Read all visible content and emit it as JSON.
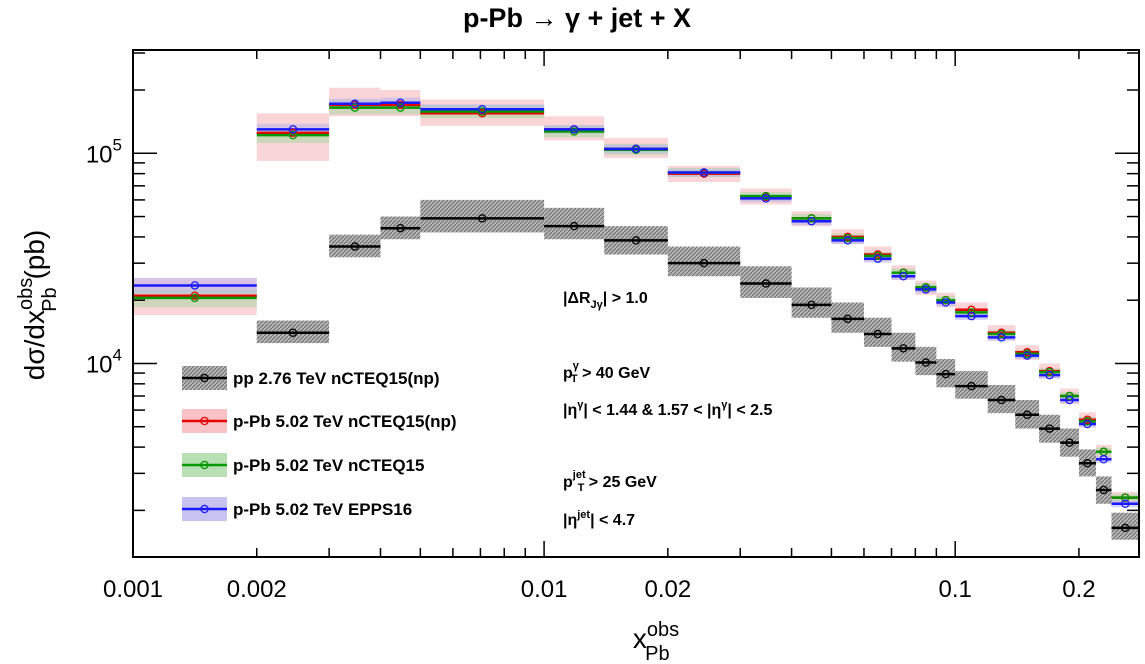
{
  "chart_data": {
    "type": "scatter",
    "title": "p-Pb → γ + jet + X",
    "xlabel": "x",
    "xlabel_main": "x",
    "xlabel_sup": "obs",
    "xlabel_sub": "Pb",
    "ylabel_text": "dσ/dx",
    "ylabel_sup": "obs",
    "ylabel_sub": "Pb",
    "ylabel_unit": "(pb)",
    "x_scale": "log",
    "y_scale": "log",
    "xlim": [
      0.001,
      0.28
    ],
    "ylim": [
      1200,
      310000
    ],
    "x_ticks": [
      {
        "value": 0.001,
        "label": "0.001"
      },
      {
        "value": 0.002,
        "label": "0.002"
      },
      {
        "value": 0.01,
        "label": "0.01"
      },
      {
        "value": 0.02,
        "label": "0.02"
      },
      {
        "value": 0.1,
        "label": "0.1"
      },
      {
        "value": 0.2,
        "label": "0.2"
      }
    ],
    "y_ticks": [
      {
        "value": 10000,
        "base": "10",
        "exp": "4"
      },
      {
        "value": 100000,
        "base": "10",
        "exp": "5"
      }
    ],
    "legend_position": "bottom-left",
    "series": [
      {
        "name": "pp 2.76 TeV nCTEQ15(np)",
        "color": "#000000",
        "band_color": "#8c8c8c",
        "bins": [
          [
            0.002,
            0.003,
            14000,
            12500,
            16000
          ],
          [
            0.003,
            0.004,
            36000,
            32000,
            41000
          ],
          [
            0.004,
            0.005,
            44000,
            39000,
            50000
          ],
          [
            0.005,
            0.01,
            49000,
            42000,
            60000
          ],
          [
            0.01,
            0.014,
            45000,
            39000,
            55000
          ],
          [
            0.014,
            0.02,
            38500,
            33000,
            45000
          ],
          [
            0.02,
            0.03,
            30000,
            26000,
            36000
          ],
          [
            0.03,
            0.04,
            24000,
            20500,
            29000
          ],
          [
            0.04,
            0.05,
            19000,
            16500,
            23000
          ],
          [
            0.05,
            0.06,
            16300,
            14000,
            19500
          ],
          [
            0.06,
            0.07,
            13800,
            12000,
            16500
          ],
          [
            0.07,
            0.08,
            11800,
            10200,
            14000
          ],
          [
            0.08,
            0.09,
            10100,
            8800,
            12000
          ],
          [
            0.09,
            0.1,
            8900,
            7700,
            10500
          ],
          [
            0.1,
            0.12,
            7800,
            6800,
            9200
          ],
          [
            0.12,
            0.14,
            6700,
            5800,
            7900
          ],
          [
            0.14,
            0.16,
            5700,
            4900,
            6700
          ],
          [
            0.16,
            0.18,
            4900,
            4200,
            5700
          ],
          [
            0.18,
            0.2,
            4200,
            3600,
            4900
          ],
          [
            0.2,
            0.22,
            3350,
            2900,
            3900
          ],
          [
            0.22,
            0.24,
            2500,
            2150,
            2900
          ],
          [
            0.24,
            0.28,
            1650,
            1450,
            1950
          ]
        ]
      },
      {
        "name": "p-Pb 5.02 TeV nCTEQ15(np)",
        "color": "#e60000",
        "band_color": "#f6b3b8",
        "bins": [
          [
            0.001,
            0.002,
            21000,
            17000,
            25500
          ],
          [
            0.002,
            0.003,
            125000,
            92000,
            155000
          ],
          [
            0.003,
            0.004,
            170000,
            150000,
            205000
          ],
          [
            0.004,
            0.005,
            170000,
            150000,
            200000
          ],
          [
            0.005,
            0.01,
            155000,
            135000,
            180000
          ],
          [
            0.01,
            0.014,
            130000,
            115000,
            150000
          ],
          [
            0.014,
            0.02,
            105000,
            95000,
            118000
          ],
          [
            0.02,
            0.03,
            80000,
            73000,
            87000
          ],
          [
            0.03,
            0.04,
            62000,
            57000,
            68000
          ],
          [
            0.04,
            0.05,
            49000,
            45000,
            53000
          ],
          [
            0.05,
            0.06,
            40000,
            37000,
            43500
          ],
          [
            0.06,
            0.07,
            33000,
            30500,
            36000
          ],
          [
            0.07,
            0.08,
            27000,
            25000,
            29300
          ],
          [
            0.08,
            0.09,
            23000,
            21200,
            24800
          ],
          [
            0.09,
            0.1,
            20000,
            18500,
            21700
          ],
          [
            0.1,
            0.12,
            18000,
            16500,
            19500
          ],
          [
            0.12,
            0.14,
            14000,
            12900,
            15200
          ],
          [
            0.14,
            0.16,
            11300,
            10400,
            12200
          ],
          [
            0.16,
            0.18,
            9200,
            8500,
            10000
          ],
          [
            0.18,
            0.2,
            7000,
            6400,
            7600
          ],
          [
            0.2,
            0.22,
            5400,
            5000,
            5850
          ],
          [
            0.22,
            0.24,
            3800,
            3550,
            4100
          ],
          [
            0.24,
            0.28,
            2300,
            2150,
            2450
          ]
        ]
      },
      {
        "name": "p-Pb 5.02 TeV nCTEQ15",
        "color": "#009900",
        "band_color": "#a7d7a2",
        "bins": [
          [
            0.001,
            0.002,
            20500,
            18500,
            22500
          ],
          [
            0.002,
            0.003,
            122000,
            112000,
            132000
          ],
          [
            0.003,
            0.004,
            165000,
            153000,
            178000
          ],
          [
            0.004,
            0.005,
            165000,
            153000,
            178000
          ],
          [
            0.005,
            0.01,
            158000,
            147000,
            170000
          ],
          [
            0.01,
            0.014,
            127000,
            119000,
            136000
          ],
          [
            0.014,
            0.02,
            104000,
            98000,
            111000
          ],
          [
            0.02,
            0.03,
            81000,
            77000,
            85000
          ],
          [
            0.03,
            0.04,
            62500,
            59500,
            65500
          ],
          [
            0.04,
            0.05,
            49000,
            46500,
            51500
          ],
          [
            0.05,
            0.06,
            39500,
            37500,
            41500
          ],
          [
            0.06,
            0.07,
            32500,
            31000,
            34000
          ],
          [
            0.07,
            0.08,
            27000,
            25700,
            28300
          ],
          [
            0.08,
            0.09,
            23000,
            21900,
            24100
          ],
          [
            0.09,
            0.1,
            20000,
            19100,
            21000
          ],
          [
            0.1,
            0.12,
            17500,
            16700,
            18300
          ],
          [
            0.12,
            0.14,
            13800,
            13200,
            14400
          ],
          [
            0.14,
            0.16,
            11100,
            10600,
            11600
          ],
          [
            0.16,
            0.18,
            9100,
            8700,
            9500
          ],
          [
            0.18,
            0.2,
            7000,
            6700,
            7300
          ],
          [
            0.2,
            0.22,
            5300,
            5050,
            5550
          ],
          [
            0.22,
            0.24,
            3800,
            3620,
            3980
          ],
          [
            0.24,
            0.28,
            2300,
            2200,
            2400
          ]
        ]
      },
      {
        "name": "p-Pb 5.02 TeV EPPS16",
        "color": "#1a1aff",
        "band_color": "#b8b4ee",
        "bins": [
          [
            0.001,
            0.002,
            23500,
            21500,
            25500
          ],
          [
            0.002,
            0.003,
            130000,
            122000,
            138000
          ],
          [
            0.003,
            0.004,
            172000,
            163000,
            182000
          ],
          [
            0.004,
            0.005,
            174000,
            165000,
            184000
          ],
          [
            0.005,
            0.01,
            162000,
            154000,
            171000
          ],
          [
            0.01,
            0.014,
            130000,
            124000,
            136000
          ],
          [
            0.014,
            0.02,
            105000,
            100000,
            110000
          ],
          [
            0.02,
            0.03,
            81000,
            77500,
            84500
          ],
          [
            0.03,
            0.04,
            61000,
            58500,
            63500
          ],
          [
            0.04,
            0.05,
            47500,
            45500,
            49500
          ],
          [
            0.05,
            0.06,
            38500,
            37000,
            40000
          ],
          [
            0.06,
            0.07,
            31500,
            30200,
            32800
          ],
          [
            0.07,
            0.08,
            26000,
            25000,
            27000
          ],
          [
            0.08,
            0.09,
            22500,
            21600,
            23400
          ],
          [
            0.09,
            0.1,
            19500,
            18700,
            20300
          ],
          [
            0.1,
            0.12,
            16800,
            16100,
            17500
          ],
          [
            0.12,
            0.14,
            13300,
            12800,
            13800
          ],
          [
            0.14,
            0.16,
            10900,
            10500,
            11300
          ],
          [
            0.16,
            0.18,
            8800,
            8450,
            9150
          ],
          [
            0.18,
            0.2,
            6700,
            6450,
            6950
          ],
          [
            0.2,
            0.22,
            5150,
            4950,
            5350
          ],
          [
            0.22,
            0.24,
            3500,
            3370,
            3630
          ],
          [
            0.24,
            0.28,
            2150,
            2070,
            2230
          ]
        ]
      }
    ],
    "annotations": [
      {
        "id": "dr",
        "parts": [
          [
            "t",
            "|ΔR"
          ],
          [
            "sub",
            "Jγ"
          ],
          [
            "t",
            "| > 1.0"
          ]
        ]
      },
      {
        "id": "ptg",
        "parts": [
          [
            "t",
            "p"
          ],
          [
            "supsub",
            "γ",
            "T"
          ],
          [
            "t",
            " > 40 GeV"
          ]
        ]
      },
      {
        "id": "etag",
        "parts": [
          [
            "t",
            "|η"
          ],
          [
            "sup",
            "γ"
          ],
          [
            "t",
            "| < 1.44 & 1.57 < |η"
          ],
          [
            "sup",
            "γ"
          ],
          [
            "t",
            "| < 2.5"
          ]
        ]
      },
      {
        "id": "ptj",
        "parts": [
          [
            "t",
            "p"
          ],
          [
            "supsub",
            "jet",
            "T"
          ],
          [
            "t",
            " > 25 GeV"
          ]
        ]
      },
      {
        "id": "etaj",
        "parts": [
          [
            "t",
            "|η"
          ],
          [
            "sup",
            "jet"
          ],
          [
            "t",
            "| < 4.7"
          ]
        ]
      }
    ]
  }
}
